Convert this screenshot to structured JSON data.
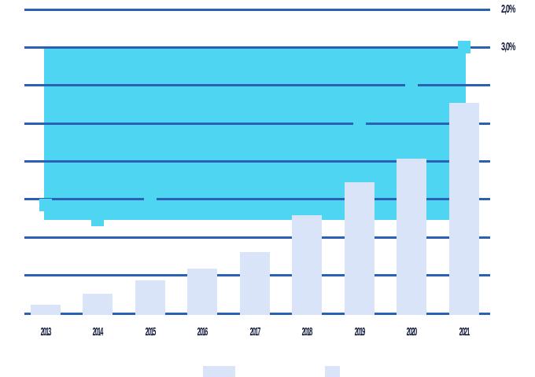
{
  "chart_data": {
    "type": "bar",
    "subtype": "combo-bar-line",
    "title": "",
    "categories": [
      "2013",
      "2014",
      "2015",
      "2016",
      "2017",
      "2018",
      "2019",
      "2020",
      "2021"
    ],
    "series": [
      {
        "name": "bar-series",
        "type": "bar",
        "axis": "left",
        "values_gridline_units": [
          0.27,
          0.55,
          0.9,
          1.22,
          1.66,
          2.62,
          3.5,
          4.12,
          5.58
        ]
      },
      {
        "name": "line-percent-series",
        "type": "line",
        "axis": "right",
        "values_percent": [
          7.15,
          7.55,
          7.0,
          6.8,
          6.5,
          6.35,
          5.0,
          4.0,
          3.0
        ]
      }
    ],
    "x_axis": {
      "tick_labels": [
        "2013",
        "2014",
        "2015",
        "2016",
        "2017",
        "2018",
        "2019",
        "2020",
        "2021"
      ]
    },
    "left_axis": {
      "tick_labels": []
    },
    "right_axis": {
      "unit": "%",
      "reversed": true,
      "visible_tick_labels": [
        {
          "text": "2,0%",
          "gridline_index": 0
        },
        {
          "text": "3,0%",
          "gridline_index": 1
        }
      ],
      "percent_at_top_gridline": 2.0,
      "percent_step_per_gridline": 1.0
    },
    "gridlines": {
      "count": 9,
      "orientation": "horizontal",
      "on": true
    },
    "area_band": {
      "description_value_range_percent": [
        3.0,
        7.55
      ],
      "spans_categories": [
        "2013",
        "2021"
      ]
    },
    "legend": {
      "position": "bottom",
      "swatches": [
        {
          "name": "legend-swatch-wide"
        },
        {
          "name": "legend-swatch-small"
        }
      ]
    }
  },
  "colors": {
    "background": "#ffffff",
    "bar": "#d9e4f9",
    "line": "#4ed5f1",
    "grid": "#2b61b4",
    "text": "#10193a"
  },
  "visible_marker_categories": [
    "2013",
    "2014",
    "2015",
    "2021"
  ]
}
